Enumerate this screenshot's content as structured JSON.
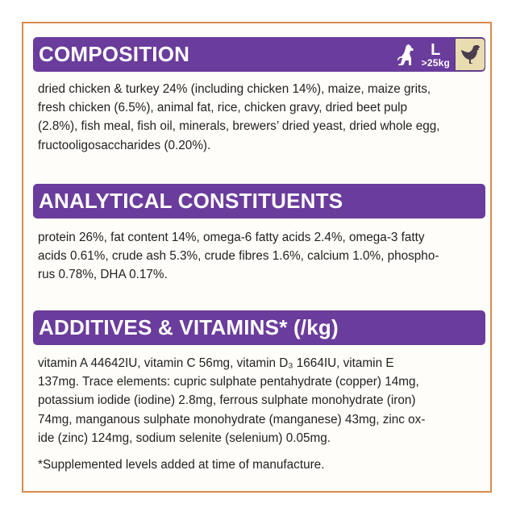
{
  "colors": {
    "accent": "#6a3c9c",
    "border": "#d98a4c",
    "badge_bg": "#e8dcb0"
  },
  "composition": {
    "title": "COMPOSITION",
    "badge": {
      "size": "L",
      "weight": ">25kg",
      "icons": [
        "dog-icon",
        "chicken-icon"
      ]
    },
    "lines": [
      "dried chicken & turkey 24% (including chicken 14%), maize, maize grits,",
      "fresh chicken (6.5%), animal fat, rice, chicken gravy, dried beet pulp",
      "(2.8%), fish meal, fish oil, minerals, brewers’ dried yeast, dried whole egg,",
      "fructooligosaccharides (0.20%)."
    ]
  },
  "analytical": {
    "title": "ANALYTICAL CONSTITUENTS",
    "lines": [
      "protein 26%, fat content 14%, omega-6 fatty acids 2.4%, omega-3 fatty",
      "acids 0.61%, crude ash 5.3%, crude fibres 1.6%, calcium 1.0%, phospho-",
      "rus 0.78%, DHA 0.17%."
    ]
  },
  "additives": {
    "title": "ADDITIVES & VITAMINS* (/kg)",
    "lines": [
      "vitamin A 44642IU, vitamin C 56mg, vitamin D₃ 1664IU, vitamin E",
      "137mg. Trace elements: cupric sulphate pentahydrate (copper) 14mg,",
      "potassium iodide (iodine) 2.8mg, ferrous sulphate monohydrate (iron)",
      "74mg, manganous sulphate monohydrate (manganese) 43mg, zinc ox-",
      "ide (zinc) 124mg, sodium selenite (selenium) 0.05mg."
    ],
    "footnote": "*Supplemented levels added at time of manufacture."
  }
}
